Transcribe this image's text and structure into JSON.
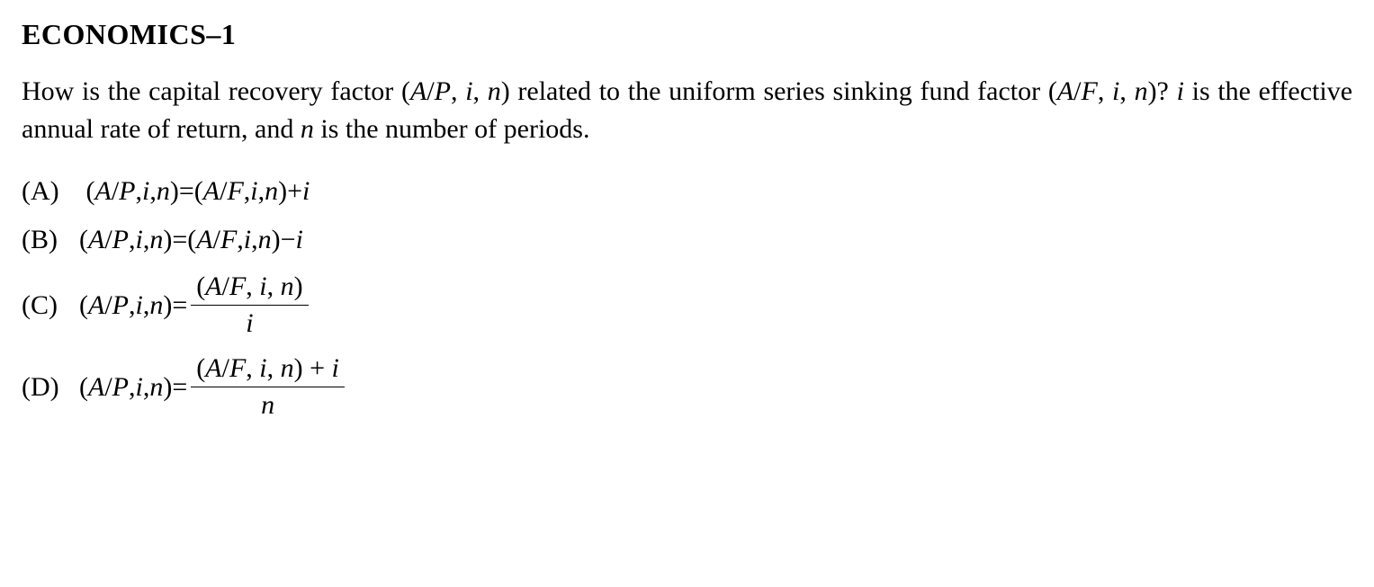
{
  "title": "ECONOMICS–1",
  "question": {
    "part1": "How is the capital recovery factor (",
    "var1": "A",
    "slash1": "/",
    "var2": "P",
    "comma1": ", ",
    "var3": "i",
    "comma2": ", ",
    "var4": "n",
    "part2": ") related to the uniform series sinking fund factor (",
    "var5": "A",
    "slash2": "/",
    "var6": "F",
    "comma3": ", ",
    "var7": "i",
    "comma4": ", ",
    "var8": "n",
    "part3": ")? ",
    "var9": "i",
    "part4": " is the effective annual rate of return, and ",
    "var10": "n",
    "part5": " is the number of periods."
  },
  "options": {
    "A": {
      "label": "(A)",
      "lhs_open": "(",
      "lhs_A": "A",
      "lhs_slash": "/",
      "lhs_P": "P",
      "lhs_c1": ", ",
      "lhs_i": "i",
      "lhs_c2": ", ",
      "lhs_n": "n",
      "lhs_close": ")",
      "eq": " = ",
      "rhs_open": "(",
      "rhs_A": "A",
      "rhs_slash": "/",
      "rhs_F": "F",
      "rhs_c1": ", ",
      "rhs_i": "i",
      "rhs_c2": ", ",
      "rhs_n": "n",
      "rhs_close": ")",
      "op": " + ",
      "tail": "i"
    },
    "B": {
      "label": "(B)",
      "lhs_open": "(",
      "lhs_A": "A",
      "lhs_slash": "/",
      "lhs_P": "P",
      "lhs_c1": ", ",
      "lhs_i": "i",
      "lhs_c2": ", ",
      "lhs_n": "n",
      "lhs_close": ")",
      "eq": " = ",
      "rhs_open": "(",
      "rhs_A": "A",
      "rhs_slash": "/",
      "rhs_F": "F",
      "rhs_c1": ", ",
      "rhs_i": "i",
      "rhs_c2": ", ",
      "rhs_n": "n",
      "rhs_close": ")",
      "op": "  − ",
      "tail": "i"
    },
    "C": {
      "label": "(C)",
      "lhs_open": "(",
      "lhs_A": "A",
      "lhs_slash": "/",
      "lhs_P": "P",
      "lhs_c1": ", ",
      "lhs_i": "i",
      "lhs_c2": ", ",
      "lhs_n": "n",
      "lhs_close": ")",
      "eq": " = ",
      "num_open": "(",
      "num_A": "A",
      "num_slash": "/",
      "num_F": "F",
      "num_c1": ", ",
      "num_i": "i",
      "num_c2": ", ",
      "num_n": "n",
      "num_close": ")",
      "den": "i"
    },
    "D": {
      "label": "(D)",
      "lhs_open": "(",
      "lhs_A": "A",
      "lhs_slash": "/",
      "lhs_P": "P",
      "lhs_c1": ", ",
      "lhs_i": "i",
      "lhs_c2": ", ",
      "lhs_n": "n",
      "lhs_close": ")",
      "eq": " = ",
      "num_open": "(",
      "num_A": "A",
      "num_slash": "/",
      "num_F": "F",
      "num_c1": ", ",
      "num_i": "i",
      "num_c2": ", ",
      "num_n": "n",
      "num_close": ")",
      "num_op": " + ",
      "num_tail": "i",
      "den": "n"
    }
  }
}
